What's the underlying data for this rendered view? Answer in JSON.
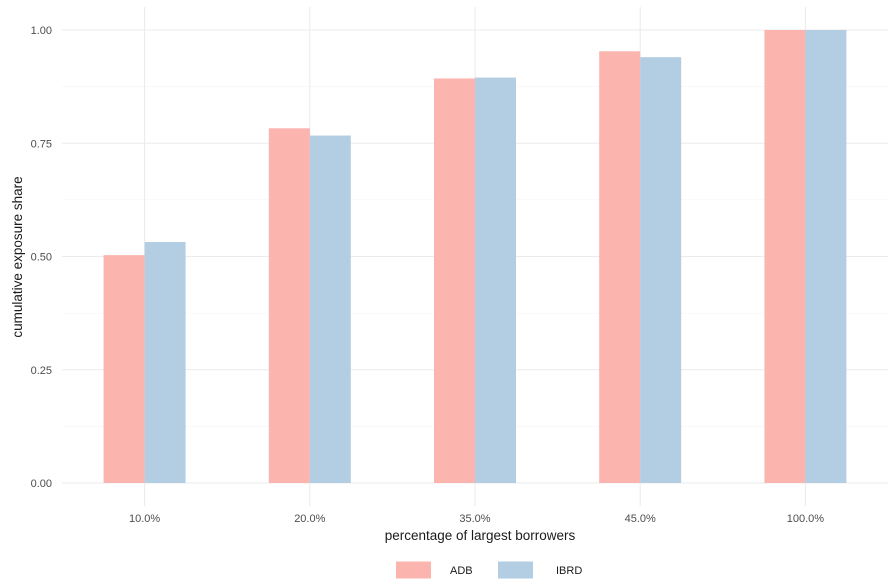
{
  "chart_data": {
    "type": "bar",
    "title": "",
    "xlabel": "percentage of largest borrowers",
    "ylabel": "cumulative exposure share",
    "categories": [
      "10.0%",
      "20.0%",
      "35.0%",
      "45.0%",
      "100.0%"
    ],
    "series": [
      {
        "name": "ADB",
        "color": "#FBB4AE",
        "values": [
          0.503,
          0.783,
          0.893,
          0.953,
          1.0
        ]
      },
      {
        "name": "IBRD",
        "color": "#B3CDE3",
        "values": [
          0.532,
          0.767,
          0.895,
          0.94,
          1.0
        ]
      }
    ],
    "ylim": [
      0,
      1
    ],
    "yticks": [
      0,
      0.25,
      0.5,
      0.75,
      1.0
    ],
    "ytick_labels": [
      "0.00",
      "0.25",
      "0.50",
      "0.75",
      "1.00"
    ],
    "grid": true,
    "legend_position": "bottom"
  }
}
